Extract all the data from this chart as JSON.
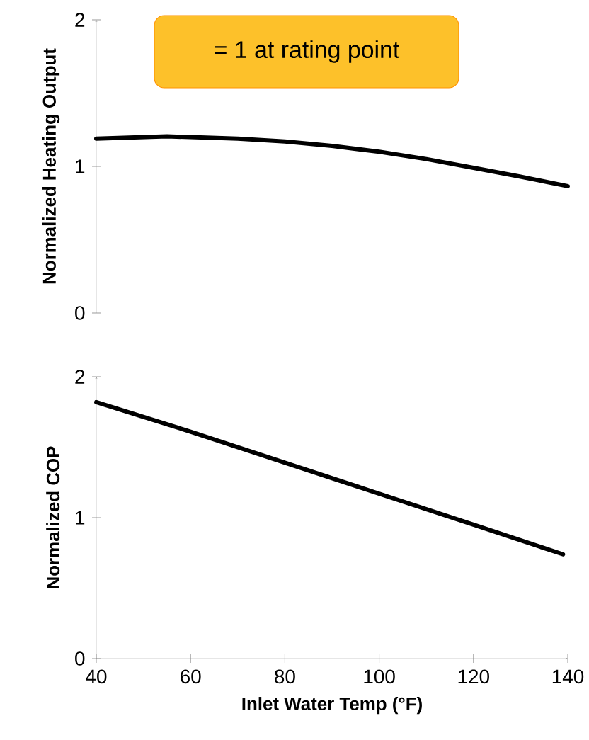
{
  "chart_data": [
    {
      "type": "line",
      "ylabel": "Normalized Heating Output",
      "annotations": [
        "= 1 at rating point"
      ],
      "x": [
        40,
        50,
        55,
        60,
        70,
        80,
        90,
        100,
        110,
        120,
        130,
        140
      ],
      "values": [
        1.19,
        1.2,
        1.205,
        1.2,
        1.19,
        1.17,
        1.14,
        1.1,
        1.05,
        0.99,
        0.93,
        0.865
      ],
      "color": "#000000",
      "xlim": [
        40,
        140
      ],
      "ylim": [
        0,
        2
      ],
      "yticks": [
        0,
        1,
        2
      ],
      "tick_labels": "y"
    },
    {
      "type": "line",
      "ylabel": "Normalized COP",
      "xlabel": "Inlet Water Temp (°F)",
      "x": [
        40,
        60,
        80,
        100,
        120,
        139
      ],
      "values": [
        1.82,
        1.61,
        1.39,
        1.17,
        0.95,
        0.74
      ],
      "color": "#000000",
      "xlim": [
        40,
        140
      ],
      "ylim": [
        0,
        2
      ],
      "yticks": [
        0,
        1,
        2
      ],
      "xticks": [
        40,
        60,
        80,
        100,
        120,
        140
      ]
    }
  ]
}
